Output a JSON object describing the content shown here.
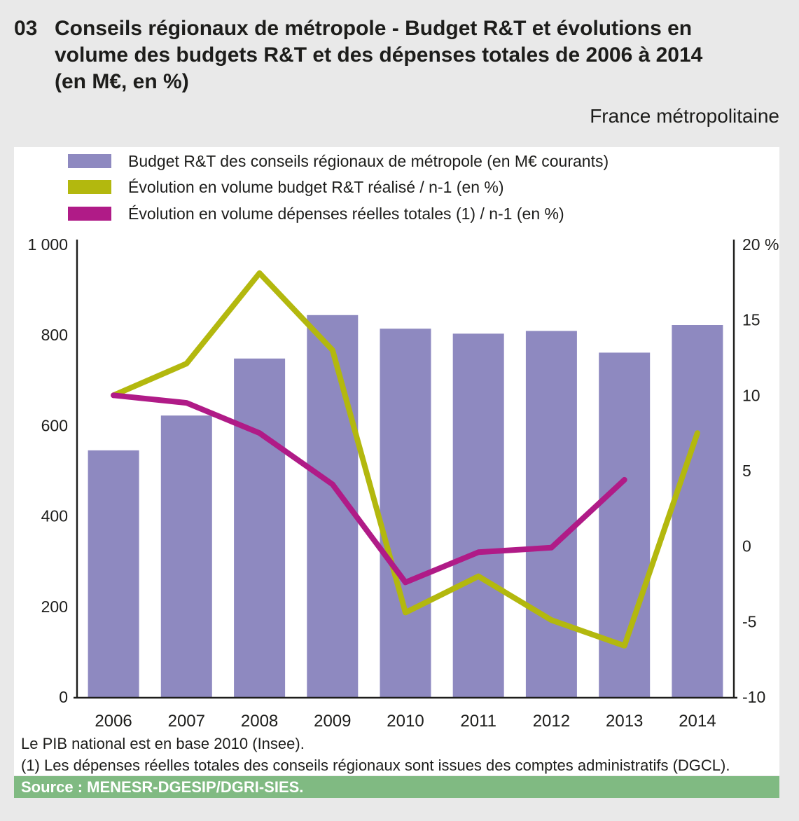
{
  "header": {
    "number": "03",
    "title_lines": [
      "Conseils régionaux de métropole - Budget R&T et évolutions en",
      "volume des budgets R&T et des dépenses totales de 2006 à 2014",
      "(en M€, en %)"
    ],
    "region": "France métropolitaine"
  },
  "footnotes": [
    "Le PIB national est en base 2010 (Insee).",
    "(1) Les dépenses réelles totales des conseils régionaux sont issues des comptes administratifs (DGCL)."
  ],
  "source": {
    "text": "Source : MENESR-DGESIP/DGRI-SIES.",
    "bg": "#80ba82"
  },
  "colors": {
    "page_bg": "#e9e9e9",
    "panel_bg": "#ffffff",
    "text": "#1d1d1b",
    "axis": "#1d1d1b"
  },
  "chart_data": {
    "type": "bar+line",
    "grid": false,
    "legend_position": "top-left",
    "categories": [
      "2006",
      "2007",
      "2008",
      "2009",
      "2010",
      "2011",
      "2012",
      "2013",
      "2014"
    ],
    "series": [
      {
        "id": "budget_bar",
        "type": "bar",
        "axis": "left",
        "name": "Budget R&T des conseils régionaux de métropole (en M€ courants)",
        "color": "#8e89c0",
        "values": [
          545,
          622,
          748,
          844,
          814,
          803,
          809,
          761,
          822
        ]
      },
      {
        "id": "evolution_budget_line",
        "type": "line",
        "axis": "right",
        "name": "Évolution en volume budget R&T réalisé / n-1 (en %)",
        "color": "#b3b80e",
        "values": [
          10,
          12.1,
          18.1,
          13,
          -4.4,
          -2,
          -4.9,
          -6.6,
          7.5
        ]
      },
      {
        "id": "evolution_depenses_line",
        "type": "line",
        "axis": "right",
        "name": "Évolution en volume dépenses réelles totales (1) / n-1 (en %)",
        "color": "#b01b87",
        "values": [
          10,
          9.5,
          7.5,
          4.1,
          -2.4,
          -0.4,
          -0.1,
          4.4,
          null
        ]
      }
    ],
    "left_axis": {
      "label": "M€",
      "min": 0,
      "max": 1000,
      "tick_values": [
        0,
        200,
        400,
        600,
        800,
        1000
      ],
      "tick_labels": [
        "0",
        "200",
        "400",
        "600",
        "800",
        "1 000"
      ]
    },
    "right_axis": {
      "label": "%",
      "min": -10,
      "max": 20,
      "tick_values": [
        -10,
        -5,
        0,
        5,
        10,
        15,
        20
      ],
      "tick_labels": [
        "-10",
        "-5",
        "0",
        "5",
        "10",
        "15",
        "20 %"
      ]
    }
  }
}
